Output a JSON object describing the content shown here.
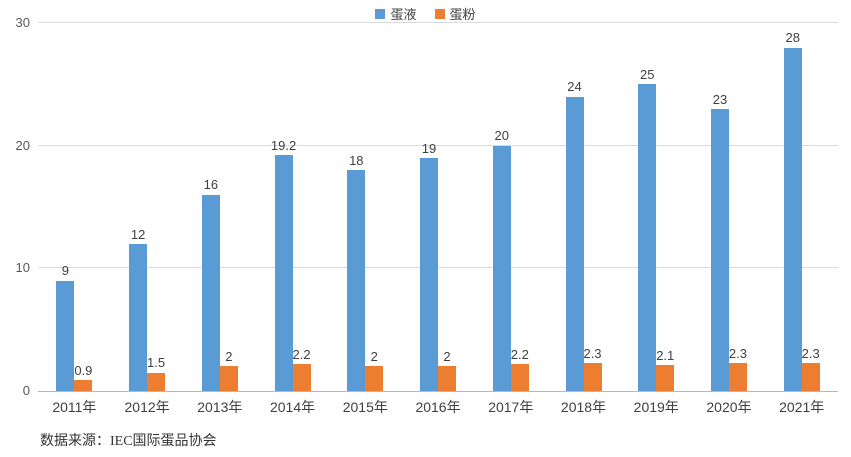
{
  "chart_data": {
    "type": "bar",
    "title": "",
    "categories": [
      "2011年",
      "2012年",
      "2013年",
      "2014年",
      "2015年",
      "2016年",
      "2017年",
      "2018年",
      "2019年",
      "2020年",
      "2021年"
    ],
    "series": [
      {
        "name": "蛋液",
        "color": "#5B9BD5",
        "values": [
          9,
          12,
          16,
          19.2,
          18,
          19,
          20,
          24,
          25,
          23,
          28
        ]
      },
      {
        "name": "蛋粉",
        "color": "#ED7D31",
        "values": [
          0.9,
          1.5,
          2,
          2.2,
          2,
          2,
          2.2,
          2.3,
          2.1,
          2.3,
          2.3
        ]
      }
    ],
    "ylim": [
      0,
      30
    ],
    "yticks": [
      0,
      10,
      20,
      30
    ],
    "grid": true,
    "data_labels": true,
    "legend_position": "top-center",
    "xlabel": "",
    "ylabel": ""
  },
  "source_note": "数据来源：IEC国际蛋品协会",
  "colors": {
    "series_blue": "#5B9BD5",
    "series_orange": "#ED7D31",
    "gridline": "#D9D9D9",
    "axis_line": "#B7B7B7",
    "data_label_text": "#404040",
    "tick_text": "#595959",
    "background": "#FFFFFF"
  }
}
